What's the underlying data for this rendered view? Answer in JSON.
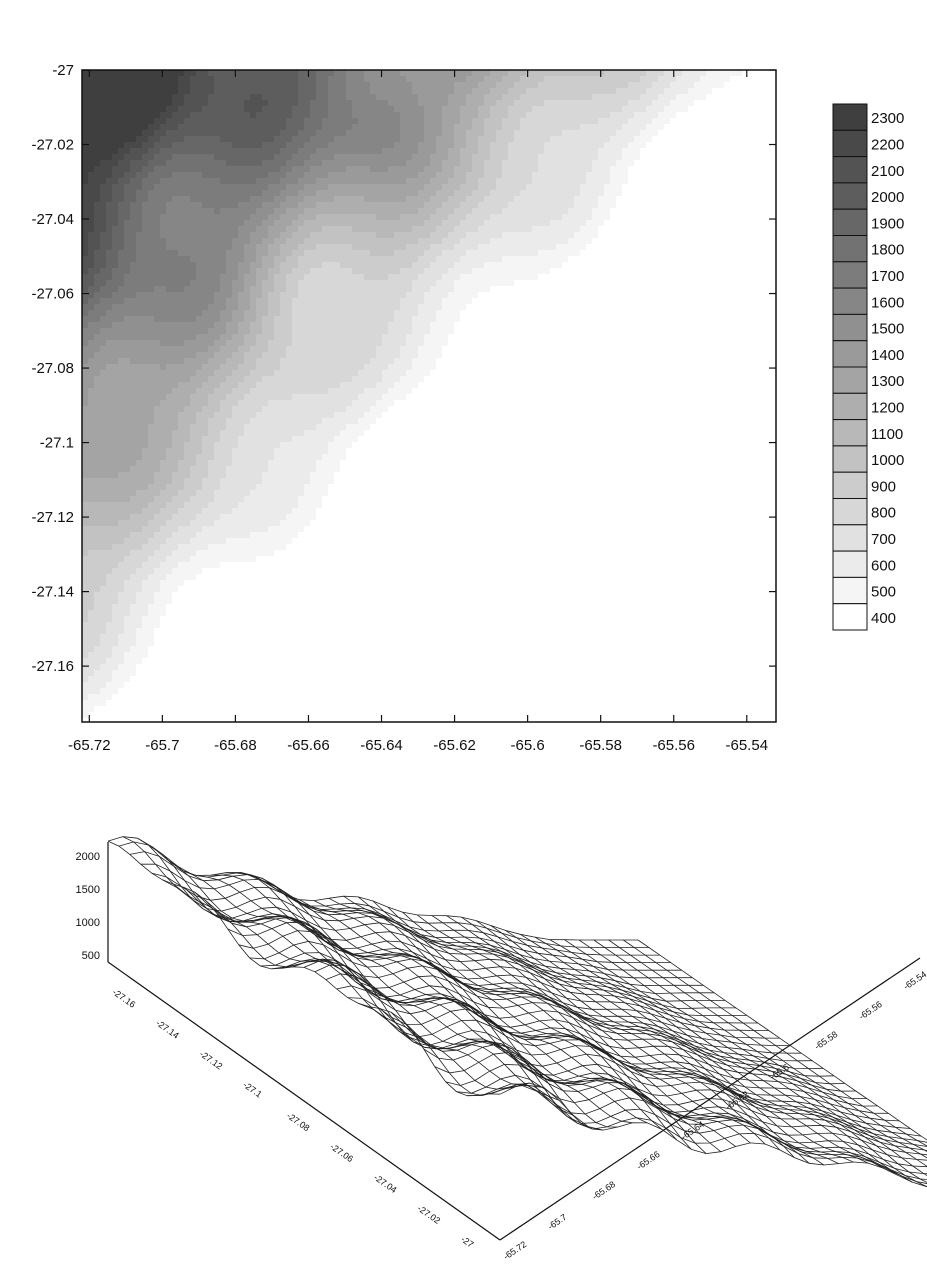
{
  "chart_data": [
    {
      "type": "contour",
      "x_ticks": [
        -65.72,
        -65.7,
        -65.68,
        -65.66,
        -65.64,
        -65.62,
        -65.6,
        -65.58,
        -65.56,
        -65.54
      ],
      "y_ticks": [
        -27,
        -27.02,
        -27.04,
        -27.06,
        -27.08,
        -27.1,
        -27.12,
        -27.14,
        -27.16
      ],
      "x_tick_labels": [
        "-65.72",
        "-65.7",
        "-65.68",
        "-65.66",
        "-65.64",
        "-65.62",
        "-65.6",
        "-65.58",
        "-65.56",
        "-65.54"
      ],
      "y_tick_labels": [
        "-27",
        "-27.02",
        "-27.04",
        "-27.06",
        "-27.08",
        "-27.1",
        "-27.12",
        "-27.14",
        "-27.16"
      ],
      "xlim": [
        -65.722,
        -65.532
      ],
      "ylim": [
        -27.175,
        -27.0
      ],
      "legend_levels": [
        2300,
        2200,
        2100,
        2000,
        1900,
        1800,
        1700,
        1600,
        1500,
        1400,
        1300,
        1200,
        1100,
        1000,
        900,
        800,
        700,
        600,
        500,
        400
      ],
      "legend_labels": [
        "2300",
        "2200",
        "2100",
        "2000",
        "1900",
        "1800",
        "1700",
        "1600",
        "1500",
        "1400",
        "1300",
        "1200",
        "1100",
        "1000",
        "900",
        "800",
        "700",
        "600",
        "500",
        "400"
      ],
      "legend_position": "right",
      "colors": {
        "high": "#3a3a3a",
        "low": "#ffffff",
        "line": "#111111"
      }
    },
    {
      "type": "surface-3d",
      "z_tick_labels": [
        "2000",
        "1500",
        "1000",
        "500"
      ],
      "x_tick_labels": [
        "-65.72",
        "-65.7",
        "-65.68",
        "-65.66",
        "-65.64",
        "-65.62",
        "-65.6",
        "-65.58",
        "-65.56",
        "-65.54"
      ],
      "y_tick_labels": [
        "-27.16",
        "-27.14",
        "-27.12",
        "-27.1",
        "-27.08",
        "-27.06",
        "-27.04",
        "-27.02",
        "-27"
      ],
      "colors": {
        "mesh": "#222222",
        "face": "#ffffff"
      }
    }
  ]
}
